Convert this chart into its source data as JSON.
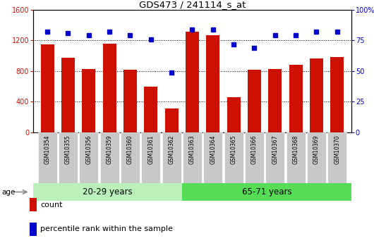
{
  "title": "GDS473 / 241114_s_at",
  "categories": [
    "GSM10354",
    "GSM10355",
    "GSM10356",
    "GSM10359",
    "GSM10360",
    "GSM10361",
    "GSM10362",
    "GSM10363",
    "GSM10364",
    "GSM10365",
    "GSM10366",
    "GSM10367",
    "GSM10368",
    "GSM10369",
    "GSM10370"
  ],
  "counts": [
    1150,
    970,
    830,
    1160,
    820,
    600,
    310,
    1310,
    1265,
    460,
    820,
    830,
    880,
    960,
    980
  ],
  "percentiles": [
    82,
    81,
    79,
    82,
    79,
    76,
    49,
    84,
    84,
    72,
    69,
    79,
    79,
    82,
    82
  ],
  "group1_n": 7,
  "group1_label": "20-29 years",
  "group2_label": "65-71 years",
  "ylim_left": [
    0,
    1600
  ],
  "ylim_right": [
    0,
    100
  ],
  "yticks_left": [
    0,
    400,
    800,
    1200,
    1600
  ],
  "yticks_right": [
    0,
    25,
    50,
    75,
    100
  ],
  "grid_lines": [
    400,
    800,
    1200
  ],
  "bar_color": "#cc1100",
  "dot_color": "#0000cc",
  "group1_bg": "#bbf0bb",
  "group2_bg": "#55dd55",
  "tick_bg": "#c8c8c8",
  "legend_count_label": "count",
  "legend_pct_label": "percentile rank within the sample"
}
